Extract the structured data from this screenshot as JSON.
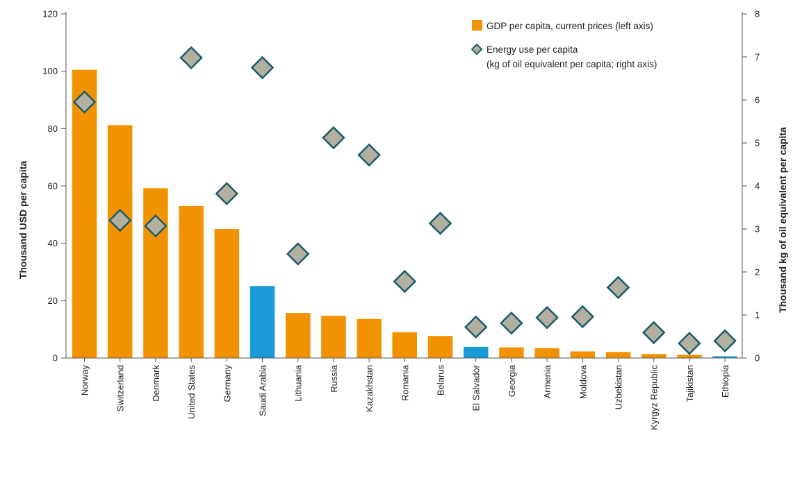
{
  "chart_data": {
    "type": "bar",
    "categories": [
      "Norway",
      "Switzerland",
      "Denmark",
      "United States",
      "Germany",
      "Saudi Arabia",
      "Lithuania",
      "Russia",
      "Kazakhstan",
      "Romania",
      "Belarus",
      "El Salvador",
      "Georgia",
      "Armenia",
      "Moldova",
      "Uzbekistan",
      "Kyrgyz Republic",
      "Tajikistan",
      "Ethiopia"
    ],
    "series": [
      {
        "name": "GDP per capita, current prices (left axis)",
        "axis": "left",
        "mark": "bar",
        "values": [
          100.5,
          81.2,
          59.2,
          53.0,
          45.0,
          25.1,
          15.7,
          14.7,
          13.6,
          9.0,
          7.7,
          3.9,
          3.7,
          3.4,
          2.3,
          2.1,
          1.4,
          1.1,
          0.6
        ]
      },
      {
        "name": "Energy use per capita",
        "name_line2": "(kg of oil equivalent per capita; right axis)",
        "axis": "right",
        "mark": "diamond",
        "values": [
          5.95,
          3.2,
          3.07,
          6.98,
          3.82,
          6.75,
          2.42,
          5.12,
          4.72,
          1.78,
          3.13,
          0.72,
          0.81,
          0.94,
          0.96,
          1.64,
          0.59,
          0.34,
          0.4
        ]
      }
    ],
    "highlighted_categories": [
      "Saudi Arabia",
      "El Salvador",
      "Ethiopia"
    ],
    "ylabel": "Thousand USD per capita",
    "y2label": "Thousand kg of oil equivalent per capita",
    "ylim": [
      0,
      120
    ],
    "y2lim": [
      0,
      8
    ],
    "yticks": [
      "0",
      "20",
      "40",
      "60",
      "80",
      "100",
      "120"
    ],
    "y2ticks": [
      "0",
      "1",
      "2",
      "3",
      "4",
      "5",
      "6",
      "7",
      "8"
    ],
    "grid": false,
    "legend_position": "top-right",
    "colors": {
      "bar": "#f39200",
      "bar_highlight": "#1a9ad6",
      "marker_fill": "#b3b09f",
      "marker_stroke": "#1b5a6b",
      "axis": "#555555"
    }
  }
}
